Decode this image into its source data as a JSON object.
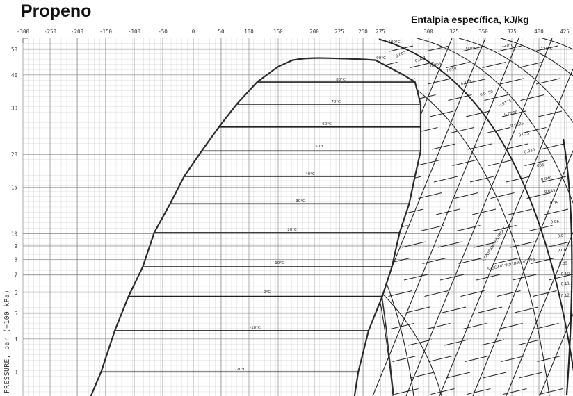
{
  "chart_data": {
    "type": "line",
    "title": "Propeno",
    "xlabel": "Entalpia específica, kJ/kg",
    "ylabel": "PRESSURE, bar (=100 kPa)",
    "x_ticks": [
      -300,
      -250,
      -200,
      -150,
      -100,
      -50,
      0,
      50,
      100,
      150,
      200,
      225,
      250,
      275,
      300,
      325,
      350,
      375,
      400,
      425
    ],
    "y_ticks": [
      50,
      40,
      30,
      20,
      15,
      10,
      9,
      8,
      7,
      6,
      5,
      4,
      3
    ],
    "y_scale": "log",
    "xlim": [
      -300,
      430
    ],
    "ylim": [
      2.4,
      55
    ],
    "grid": true,
    "critical_point": {
      "h": 212,
      "p": 46.3
    },
    "saturated_liquid": {
      "h": [
        -176,
        -158,
        -134,
        -110,
        -85,
        -65,
        -38,
        -15,
        15,
        46,
        78,
        114,
        150,
        170
      ],
      "p": [
        2.43,
        3.0,
        4.3,
        5.8,
        7.5,
        10.1,
        13,
        16.5,
        20.6,
        25.4,
        31,
        37.6,
        43,
        45.5
      ]
    },
    "saturated_vapor": {
      "h": [
        241,
        245,
        258,
        276,
        281,
        285,
        290,
        293,
        296,
        296,
        296,
        293,
        287,
        268
      ],
      "p": [
        2.43,
        3.0,
        4.3,
        5.8,
        7.5,
        10.1,
        13,
        16.5,
        20.6,
        25.4,
        31,
        37.6,
        40,
        45.5
      ]
    },
    "isotherms_two_phase": [
      {
        "label": "80°C",
        "p": 37.6,
        "h_liq": 114,
        "h_vap": 293
      },
      {
        "label": "70°C",
        "p": 31,
        "h_liq": 78,
        "h_vap": 296
      },
      {
        "label": "60°C",
        "p": 25.4,
        "h_liq": 46,
        "h_vap": 296
      },
      {
        "label": "50°C",
        "p": 20.6,
        "h_liq": 15,
        "h_vap": 296
      },
      {
        "label": "40°C",
        "p": 16.5,
        "h_liq": -15,
        "h_vap": 293
      },
      {
        "label": "30°C",
        "p": 13,
        "h_liq": -38,
        "h_vap": 290
      },
      {
        "label": "20°C",
        "p": 10.1,
        "h_liq": -65,
        "h_vap": 285
      },
      {
        "label": "10°C",
        "p": 7.5,
        "h_liq": -85,
        "h_vap": 281
      },
      {
        "label": "0°C",
        "p": 5.8,
        "h_liq": -110,
        "h_vap": 276
      },
      {
        "label": "-10°C",
        "p": 4.3,
        "h_liq": -134,
        "h_vap": 258
      },
      {
        "label": "-20°C",
        "p": 3.0,
        "h_liq": -158,
        "h_vap": 245
      }
    ],
    "superheated_isotherm_labels": [
      "100°C",
      "90°C",
      "110°C",
      "120°C",
      "130°C"
    ],
    "specific_volume_labels": [
      "0.007",
      "0.008",
      "0.009",
      "0.010",
      "0.125",
      "0.0150",
      "0.0175",
      "0.0200",
      "0.0225",
      "0.025",
      "0.030",
      "0.035",
      "0.040",
      "0.045",
      "0.05",
      "0.06",
      "0.07",
      "0.08",
      "0.09",
      "0.10",
      "0.11",
      "0.12"
    ],
    "annotations": [
      "CONSTANT ENTROPY",
      "SPECIFIC VOLUME, m3/kg"
    ],
    "colors": {
      "line": "#222222",
      "grid": "#9a9a9a",
      "background": "#ffffff"
    }
  }
}
